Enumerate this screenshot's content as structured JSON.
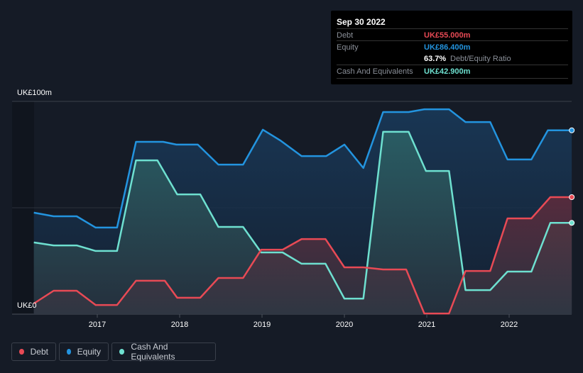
{
  "tooltip": {
    "date": "Sep 30 2022",
    "debt_label": "Debt",
    "debt_value": "UK£55.000m",
    "equity_label": "Equity",
    "equity_value": "UK£86.400m",
    "ratio_value": "63.7%",
    "ratio_label": "Debt/Equity Ratio",
    "cash_label": "Cash And Equivalents",
    "cash_value": "UK£42.900m"
  },
  "legend": [
    {
      "label": "Debt",
      "color": "#e84a55"
    },
    {
      "label": "Equity",
      "color": "#2394df"
    },
    {
      "label": "Cash And Equivalents",
      "color": "#6ee0d0"
    }
  ],
  "chart_data": {
    "type": "area",
    "title": "",
    "xlabel": "",
    "ylabel": "",
    "ylim": [
      0,
      100
    ],
    "xlim": [
      2016.0,
      2022.76
    ],
    "y_tick_labels": [
      "UK£0",
      "UK£100m"
    ],
    "x_ticks": [
      2017,
      2018,
      2019,
      2020,
      2021,
      2022
    ],
    "x_tick_labels": [
      "2017",
      "2018",
      "2019",
      "2020",
      "2021",
      "2022"
    ],
    "grid": true,
    "legend_position": "bottom-left",
    "series": [
      {
        "name": "Equity",
        "color": "#2394df",
        "x": [
          2016.23,
          2016.47,
          2016.75,
          2016.98,
          2017.24,
          2017.47,
          2017.8,
          2017.96,
          2018.22,
          2018.47,
          2018.77,
          2019.01,
          2019.22,
          2019.48,
          2019.78,
          2020.0,
          2020.23,
          2020.47,
          2020.78,
          2020.97,
          2021.27,
          2021.47,
          2021.77,
          2021.98,
          2022.27,
          2022.47,
          2022.76
        ],
        "values": [
          47.7,
          46,
          46,
          40.7,
          40.7,
          81,
          81,
          79.7,
          79.7,
          70.3,
          70.3,
          86.7,
          81.7,
          74.3,
          74.3,
          79.7,
          68.7,
          95,
          95,
          96.3,
          96.3,
          90.3,
          90.3,
          72.7,
          72.7,
          86.4,
          86.4
        ]
      },
      {
        "name": "Cash And Equivalents",
        "color": "#6ee0d0",
        "x": [
          2016.23,
          2016.47,
          2016.75,
          2016.98,
          2017.24,
          2017.47,
          2017.73,
          2017.97,
          2018.25,
          2018.47,
          2018.77,
          2018.99,
          2019.25,
          2019.48,
          2019.77,
          2020.0,
          2020.23,
          2020.47,
          2020.78,
          2020.99,
          2021.27,
          2021.47,
          2021.77,
          2021.98,
          2022.27,
          2022.5,
          2022.76
        ],
        "values": [
          33.7,
          32.3,
          32.3,
          29.7,
          29.7,
          72.3,
          72.3,
          56.3,
          56.3,
          41,
          41,
          29,
          29,
          23.7,
          23.7,
          7.3,
          7.3,
          85.7,
          85.7,
          67.3,
          67.3,
          11.3,
          11.3,
          20,
          20,
          42.9,
          42.9
        ]
      },
      {
        "name": "Debt",
        "color": "#e84a55",
        "x": [
          2016.23,
          2016.47,
          2016.75,
          2016.98,
          2017.24,
          2017.47,
          2017.82,
          2017.97,
          2018.25,
          2018.47,
          2018.77,
          2018.99,
          2019.25,
          2019.48,
          2019.77,
          2020.0,
          2020.23,
          2020.47,
          2020.75,
          2020.97,
          2021.27,
          2021.47,
          2021.77,
          2021.98,
          2022.27,
          2022.5,
          2022.76
        ],
        "values": [
          5,
          11,
          11,
          4.3,
          4.3,
          15.7,
          15.7,
          7.7,
          7.7,
          17,
          17,
          30.3,
          30.3,
          35.3,
          35.3,
          22,
          22,
          21,
          21,
          0.3,
          0.3,
          20.3,
          20.3,
          45,
          45,
          55,
          55
        ]
      }
    ]
  }
}
